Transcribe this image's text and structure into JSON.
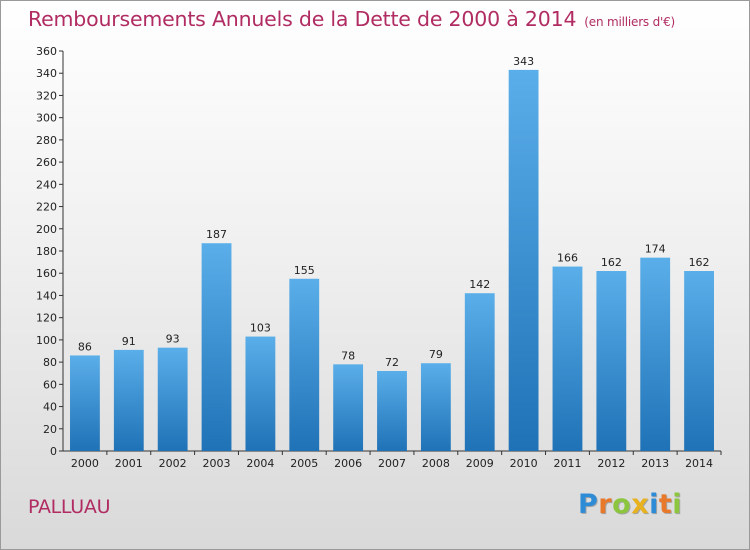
{
  "title": "Remboursements Annuels de la Dette de 2000 à 2014",
  "unit": "(en milliers d'€)",
  "commune": "PALLUAU",
  "logo": {
    "letters": [
      {
        "ch": "P",
        "color": "#2e8bd6"
      },
      {
        "ch": "r",
        "color": "#e8782a"
      },
      {
        "ch": "o",
        "color": "#8cc63f"
      },
      {
        "ch": "x",
        "color": "#e8b21f"
      },
      {
        "ch": "i",
        "color": "#2e8bd6"
      },
      {
        "ch": "t",
        "color": "#e8782a"
      },
      {
        "ch": "i",
        "color": "#8cc63f"
      }
    ]
  },
  "colors": {
    "title": "#b02c62",
    "bar_light": "#5aaee9",
    "bar_dark": "#1f72b6"
  },
  "chart_data": {
    "type": "bar",
    "title": "Remboursements Annuels de la Dette de 2000 à 2014",
    "ylabel": "",
    "xlabel": "",
    "ylim": [
      0,
      360
    ],
    "ytick_step": 20,
    "grid": false,
    "categories": [
      "2000",
      "2001",
      "2002",
      "2003",
      "2004",
      "2005",
      "2006",
      "2007",
      "2008",
      "2009",
      "2010",
      "2011",
      "2012",
      "2013",
      "2014"
    ],
    "values": [
      86,
      91,
      93,
      187,
      103,
      155,
      78,
      72,
      79,
      142,
      343,
      166,
      162,
      174,
      162
    ]
  }
}
